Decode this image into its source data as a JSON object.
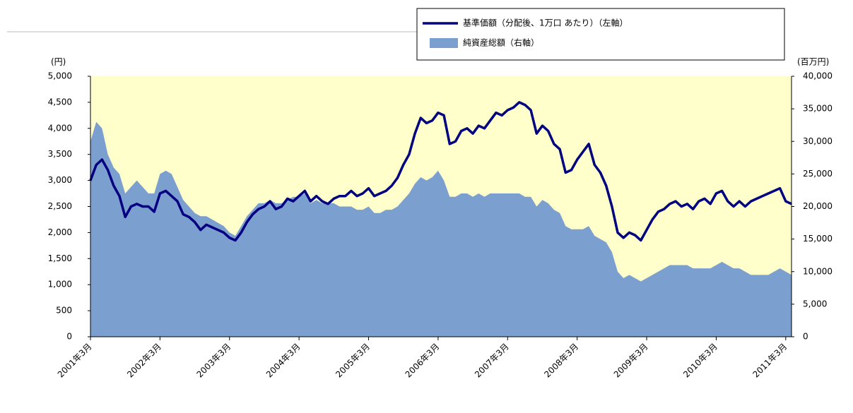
{
  "chart_data": {
    "type": "combo",
    "legend": "top-right",
    "y_label": "(円)",
    "y2_label": "(百万円)",
    "ylim": [
      0,
      5000
    ],
    "yticks": [
      0,
      500,
      {
        "value": 1000,
        "label": "1,000"
      },
      {
        "value": 1500,
        "label": "1,500"
      },
      {
        "value": 2000,
        "label": "2,000"
      },
      {
        "value": 2500,
        "label": "2,500"
      },
      {
        "value": 3000,
        "label": "3,000"
      },
      {
        "value": 3500,
        "label": "3,500"
      },
      {
        "value": 4000,
        "label": "4,000"
      },
      {
        "value": 4500,
        "label": "4,500"
      },
      {
        "value": 5000,
        "label": "5,000"
      }
    ],
    "y2lim": [
      0,
      40000
    ],
    "y2ticks": [
      0,
      {
        "value": 5000,
        "label": "5,000"
      },
      {
        "value": 10000,
        "label": "10,000"
      },
      {
        "value": 15000,
        "label": "15,000"
      },
      {
        "value": 20000,
        "label": "20,000"
      },
      {
        "value": 25000,
        "label": "25,000"
      },
      {
        "value": 30000,
        "label": "30,000"
      },
      {
        "value": 35000,
        "label": "35,000"
      },
      {
        "value": 40000,
        "label": "40,000"
      }
    ],
    "grid": false,
    "plot_background": "#ffffcc",
    "categories": [
      "2001年3月",
      null,
      null,
      null,
      null,
      null,
      null,
      null,
      null,
      null,
      null,
      null,
      "2002年3月",
      null,
      null,
      null,
      null,
      null,
      null,
      null,
      null,
      null,
      null,
      null,
      "2003年3月",
      null,
      null,
      null,
      null,
      null,
      null,
      null,
      null,
      null,
      null,
      null,
      "2004年3月",
      null,
      null,
      null,
      null,
      null,
      null,
      null,
      null,
      null,
      null,
      null,
      "2005年3月",
      null,
      null,
      null,
      null,
      null,
      null,
      null,
      null,
      null,
      null,
      null,
      "2006年3月",
      null,
      null,
      null,
      null,
      null,
      null,
      null,
      null,
      null,
      null,
      null,
      "2007年3月",
      null,
      null,
      null,
      null,
      null,
      null,
      null,
      null,
      null,
      null,
      null,
      "2008年3月",
      null,
      null,
      null,
      null,
      null,
      null,
      null,
      null,
      null,
      null,
      null,
      "2009年3月",
      null,
      null,
      null,
      null,
      null,
      null,
      null,
      null,
      null,
      null,
      null,
      "2010年3月",
      null,
      null,
      null,
      null,
      null,
      null,
      null,
      null,
      null,
      null,
      null,
      "2011年3月",
      null
    ],
    "series": [
      {
        "name": "純資産総額（右軸）",
        "type": "area",
        "axis": "y2",
        "color": "#7b9fcf",
        "values": [
          30000,
          33000,
          32000,
          28000,
          26000,
          25000,
          22000,
          23000,
          24000,
          23000,
          22000,
          22000,
          25000,
          25500,
          25000,
          23000,
          21000,
          20000,
          19000,
          18500,
          18500,
          18000,
          17500,
          17000,
          16000,
          15500,
          17000,
          18500,
          19500,
          20500,
          20500,
          21000,
          20500,
          20500,
          21000,
          21500,
          21500,
          22000,
          20500,
          21000,
          20500,
          20500,
          20500,
          20000,
          20000,
          20000,
          19500,
          19500,
          20000,
          19000,
          19000,
          19500,
          19500,
          20000,
          21000,
          22000,
          23500,
          24500,
          24000,
          24500,
          25500,
          24000,
          21500,
          21500,
          22000,
          22000,
          21500,
          22000,
          21500,
          22000,
          22000,
          22000,
          22000,
          22000,
          22000,
          21500,
          21500,
          20000,
          21000,
          20500,
          19500,
          19000,
          17000,
          16500,
          16500,
          16500,
          17000,
          15500,
          15000,
          14500,
          13000,
          10000,
          9000,
          9500,
          9000,
          8500,
          9000,
          9500,
          10000,
          10500,
          11000,
          11000,
          11000,
          11000,
          10500,
          10500,
          10500,
          10500,
          11000,
          11500,
          11000,
          10500,
          10500,
          10000,
          9500,
          9500,
          9500,
          9500,
          10000,
          10500,
          10000,
          9500
        ]
      },
      {
        "name": "基準価額（分配後、1万口 あたり）（左軸）",
        "type": "line",
        "axis": "y",
        "color": "#000080",
        "values": [
          3000,
          3300,
          3400,
          3200,
          2900,
          2700,
          2300,
          2500,
          2550,
          2500,
          2500,
          2400,
          2750,
          2800,
          2700,
          2600,
          2350,
          2300,
          2200,
          2050,
          2150,
          2100,
          2050,
          2000,
          1900,
          1850,
          2000,
          2200,
          2350,
          2450,
          2500,
          2600,
          2450,
          2500,
          2650,
          2600,
          2700,
          2800,
          2600,
          2700,
          2600,
          2550,
          2650,
          2700,
          2700,
          2800,
          2700,
          2750,
          2850,
          2700,
          2750,
          2800,
          2900,
          3050,
          3300,
          3500,
          3900,
          4200,
          4100,
          4150,
          4300,
          4250,
          3700,
          3750,
          3950,
          4000,
          3900,
          4050,
          4000,
          4150,
          4300,
          4250,
          4350,
          4400,
          4500,
          4450,
          4350,
          3900,
          4050,
          3950,
          3700,
          3600,
          3150,
          3200,
          3400,
          3550,
          3700,
          3300,
          3150,
          2900,
          2500,
          2000,
          1900,
          2000,
          1950,
          1850,
          2050,
          2250,
          2400,
          2450,
          2550,
          2600,
          2500,
          2550,
          2450,
          2600,
          2650,
          2550,
          2750,
          2800,
          2600,
          2500,
          2600,
          2500,
          2600,
          2650,
          2700,
          2750,
          2800,
          2850,
          2600,
          2550
        ]
      }
    ]
  }
}
